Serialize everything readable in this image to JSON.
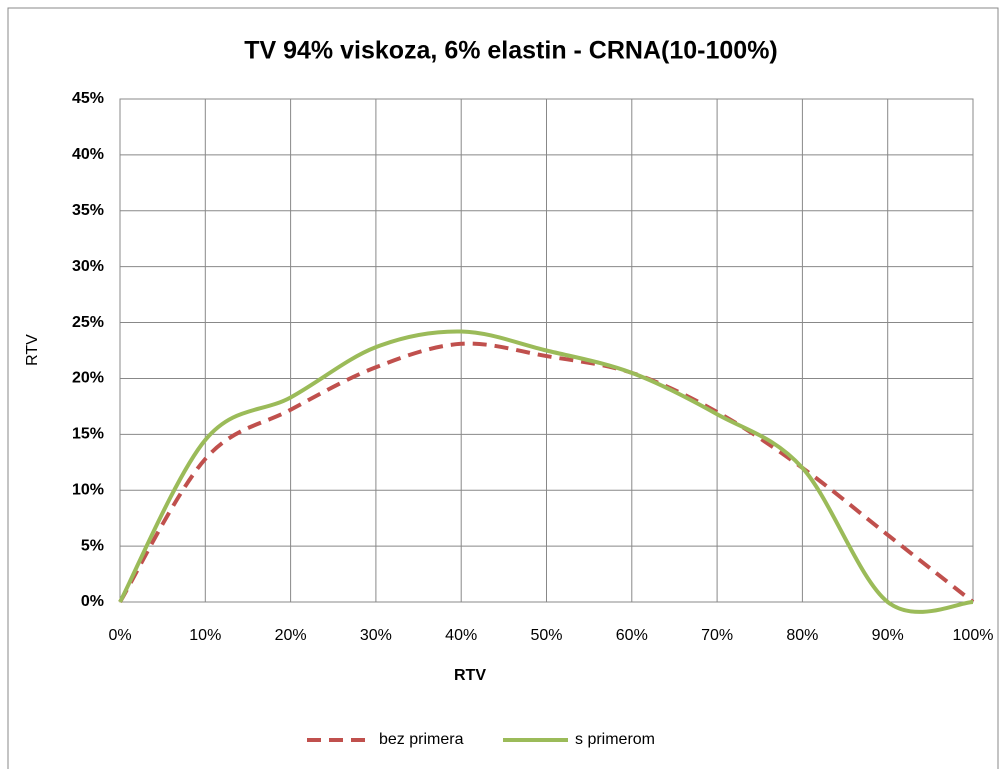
{
  "chart_data": {
    "type": "line",
    "title": "TV 94% viskoza, 6% elastin - CRNA(10-100%)",
    "xlabel": "RTV",
    "ylabel": "RTV",
    "x": [
      0,
      10,
      20,
      30,
      40,
      50,
      60,
      70,
      80,
      90,
      100
    ],
    "series": [
      {
        "name": "bez primera",
        "color": "#c0504d",
        "dashed": true,
        "values": [
          0,
          12.8,
          17.2,
          21,
          23.1,
          22,
          20.5,
          17,
          12,
          6,
          0
        ]
      },
      {
        "name": "s primerom",
        "color": "#9bbb59",
        "dashed": false,
        "values": [
          0,
          14.5,
          18.3,
          22.8,
          24.2,
          22.5,
          20.5,
          16.8,
          12,
          0,
          0
        ]
      }
    ],
    "xlim": [
      0,
      100
    ],
    "xticks": [
      {
        "value": 0,
        "label": "0%"
      },
      {
        "value": 10,
        "label": "10%"
      },
      {
        "value": 20,
        "label": "20%"
      },
      {
        "value": 30,
        "label": "30%"
      },
      {
        "value": 40,
        "label": "40%"
      },
      {
        "value": 50,
        "label": "50%"
      },
      {
        "value": 60,
        "label": "60%"
      },
      {
        "value": 70,
        "label": "70%"
      },
      {
        "value": 80,
        "label": "80%"
      },
      {
        "value": 90,
        "label": "90%"
      },
      {
        "value": 100,
        "label": "100%"
      }
    ],
    "ylim": [
      0,
      45
    ],
    "yticks": [
      {
        "value": 0,
        "label": "0%"
      },
      {
        "value": 5,
        "label": "5%"
      },
      {
        "value": 10,
        "label": "10%"
      },
      {
        "value": 15,
        "label": "15%"
      },
      {
        "value": 20,
        "label": "20%"
      },
      {
        "value": 25,
        "label": "25%"
      },
      {
        "value": 30,
        "label": "30%"
      },
      {
        "value": 35,
        "label": "35%"
      },
      {
        "value": 40,
        "label": "40%"
      },
      {
        "value": 45,
        "label": "45%"
      }
    ],
    "grid": true,
    "legend": "bottom"
  }
}
